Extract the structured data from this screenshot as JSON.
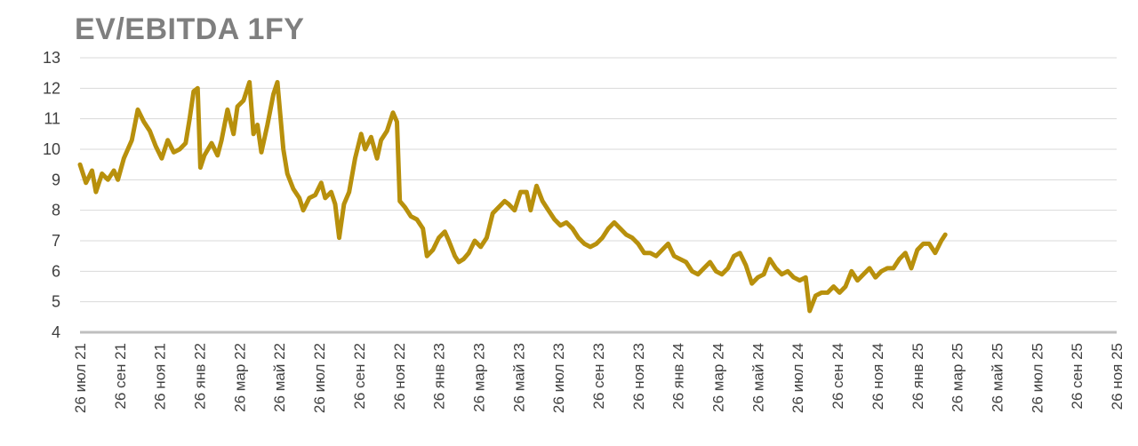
{
  "chart_data": {
    "type": "line",
    "title": "EV/EBITDA 1FY",
    "xlabel": "",
    "ylabel": "",
    "ylim": [
      4,
      13
    ],
    "y_ticks": [
      4,
      5,
      6,
      7,
      8,
      9,
      10,
      11,
      12,
      13
    ],
    "x_tick_labels": [
      "26 июл 21",
      "26 сен 21",
      "26 ноя 21",
      "26 янв 22",
      "26 мар 22",
      "26 май 22",
      "26 июл 22",
      "26 сен 22",
      "26 ноя 22",
      "26 янв 23",
      "26 мар 23",
      "26 май 23",
      "26 июл 23",
      "26 сен 23",
      "26 ноя 23",
      "26 янв 24",
      "26 мар 24",
      "26 май 24",
      "26 июл 24",
      "26 сен 24",
      "26 ноя 24",
      "26 янв 25",
      "26 мар 25",
      "26 май 25",
      "26 июл 25",
      "26 сен 25",
      "26 ноя 25"
    ],
    "grid": true,
    "legend": "none",
    "line_color": "#b8900c",
    "series": [
      {
        "values": [
          [
            0,
            9.5
          ],
          [
            0.15,
            8.9
          ],
          [
            0.3,
            9.3
          ],
          [
            0.4,
            8.6
          ],
          [
            0.55,
            9.2
          ],
          [
            0.7,
            9.0
          ],
          [
            0.85,
            9.3
          ],
          [
            0.95,
            9.0
          ],
          [
            1.1,
            9.7
          ],
          [
            1.3,
            10.3
          ],
          [
            1.45,
            11.3
          ],
          [
            1.6,
            10.9
          ],
          [
            1.75,
            10.6
          ],
          [
            1.9,
            10.1
          ],
          [
            2.05,
            9.7
          ],
          [
            2.2,
            10.3
          ],
          [
            2.35,
            9.9
          ],
          [
            2.5,
            10.0
          ],
          [
            2.65,
            10.2
          ],
          [
            2.75,
            11.0
          ],
          [
            2.85,
            11.9
          ],
          [
            2.95,
            12.0
          ],
          [
            3.02,
            9.4
          ],
          [
            3.12,
            9.8
          ],
          [
            3.3,
            10.2
          ],
          [
            3.45,
            9.8
          ],
          [
            3.55,
            10.3
          ],
          [
            3.7,
            11.3
          ],
          [
            3.85,
            10.5
          ],
          [
            3.95,
            11.4
          ],
          [
            4.1,
            11.6
          ],
          [
            4.25,
            12.2
          ],
          [
            4.35,
            10.5
          ],
          [
            4.45,
            10.8
          ],
          [
            4.55,
            9.9
          ],
          [
            4.7,
            10.8
          ],
          [
            4.85,
            11.8
          ],
          [
            4.95,
            12.2
          ],
          [
            5.1,
            10.0
          ],
          [
            5.2,
            9.2
          ],
          [
            5.35,
            8.7
          ],
          [
            5.5,
            8.4
          ],
          [
            5.6,
            8.0
          ],
          [
            5.75,
            8.4
          ],
          [
            5.9,
            8.5
          ],
          [
            6.05,
            8.9
          ],
          [
            6.15,
            8.4
          ],
          [
            6.3,
            8.6
          ],
          [
            6.4,
            8.2
          ],
          [
            6.5,
            7.1
          ],
          [
            6.62,
            8.2
          ],
          [
            6.75,
            8.6
          ],
          [
            6.9,
            9.7
          ],
          [
            7.05,
            10.5
          ],
          [
            7.15,
            10.0
          ],
          [
            7.3,
            10.4
          ],
          [
            7.45,
            9.7
          ],
          [
            7.55,
            10.3
          ],
          [
            7.7,
            10.6
          ],
          [
            7.85,
            11.2
          ],
          [
            7.95,
            10.9
          ],
          [
            8.02,
            8.3
          ],
          [
            8.15,
            8.1
          ],
          [
            8.3,
            7.8
          ],
          [
            8.45,
            7.7
          ],
          [
            8.6,
            7.4
          ],
          [
            8.7,
            6.5
          ],
          [
            8.85,
            6.7
          ],
          [
            9.0,
            7.1
          ],
          [
            9.15,
            7.3
          ],
          [
            9.25,
            7.0
          ],
          [
            9.4,
            6.5
          ],
          [
            9.5,
            6.3
          ],
          [
            9.62,
            6.4
          ],
          [
            9.75,
            6.6
          ],
          [
            9.9,
            7.0
          ],
          [
            10.05,
            6.8
          ],
          [
            10.2,
            7.1
          ],
          [
            10.35,
            7.9
          ],
          [
            10.5,
            8.1
          ],
          [
            10.65,
            8.3
          ],
          [
            10.75,
            8.2
          ],
          [
            10.9,
            8.0
          ],
          [
            11.05,
            8.6
          ],
          [
            11.2,
            8.6
          ],
          [
            11.3,
            8.0
          ],
          [
            11.45,
            8.8
          ],
          [
            11.6,
            8.3
          ],
          [
            11.75,
            8.0
          ],
          [
            11.9,
            7.7
          ],
          [
            12.05,
            7.5
          ],
          [
            12.2,
            7.6
          ],
          [
            12.35,
            7.4
          ],
          [
            12.5,
            7.1
          ],
          [
            12.65,
            6.9
          ],
          [
            12.8,
            6.8
          ],
          [
            12.95,
            6.9
          ],
          [
            13.1,
            7.1
          ],
          [
            13.25,
            7.4
          ],
          [
            13.4,
            7.6
          ],
          [
            13.55,
            7.4
          ],
          [
            13.7,
            7.2
          ],
          [
            13.85,
            7.1
          ],
          [
            14.0,
            6.9
          ],
          [
            14.15,
            6.6
          ],
          [
            14.3,
            6.6
          ],
          [
            14.45,
            6.5
          ],
          [
            14.6,
            6.7
          ],
          [
            14.75,
            6.9
          ],
          [
            14.9,
            6.5
          ],
          [
            15.05,
            6.4
          ],
          [
            15.2,
            6.3
          ],
          [
            15.35,
            6.0
          ],
          [
            15.5,
            5.9
          ],
          [
            15.65,
            6.1
          ],
          [
            15.8,
            6.3
          ],
          [
            15.95,
            6.0
          ],
          [
            16.1,
            5.9
          ],
          [
            16.25,
            6.1
          ],
          [
            16.4,
            6.5
          ],
          [
            16.55,
            6.6
          ],
          [
            16.7,
            6.2
          ],
          [
            16.85,
            5.6
          ],
          [
            17.0,
            5.8
          ],
          [
            17.15,
            5.9
          ],
          [
            17.3,
            6.4
          ],
          [
            17.45,
            6.1
          ],
          [
            17.6,
            5.9
          ],
          [
            17.75,
            6.0
          ],
          [
            17.9,
            5.8
          ],
          [
            18.05,
            5.7
          ],
          [
            18.2,
            5.8
          ],
          [
            18.3,
            4.7
          ],
          [
            18.45,
            5.2
          ],
          [
            18.6,
            5.3
          ],
          [
            18.75,
            5.3
          ],
          [
            18.9,
            5.5
          ],
          [
            19.05,
            5.3
          ],
          [
            19.2,
            5.5
          ],
          [
            19.35,
            6.0
          ],
          [
            19.5,
            5.7
          ],
          [
            19.65,
            5.9
          ],
          [
            19.8,
            6.1
          ],
          [
            19.95,
            5.8
          ],
          [
            20.1,
            6.0
          ],
          [
            20.25,
            6.1
          ],
          [
            20.4,
            6.1
          ],
          [
            20.55,
            6.4
          ],
          [
            20.7,
            6.6
          ],
          [
            20.85,
            6.1
          ],
          [
            21.0,
            6.7
          ],
          [
            21.15,
            6.9
          ],
          [
            21.3,
            6.9
          ],
          [
            21.45,
            6.6
          ],
          [
            21.6,
            7.0
          ],
          [
            21.7,
            7.2
          ]
        ]
      }
    ]
  }
}
